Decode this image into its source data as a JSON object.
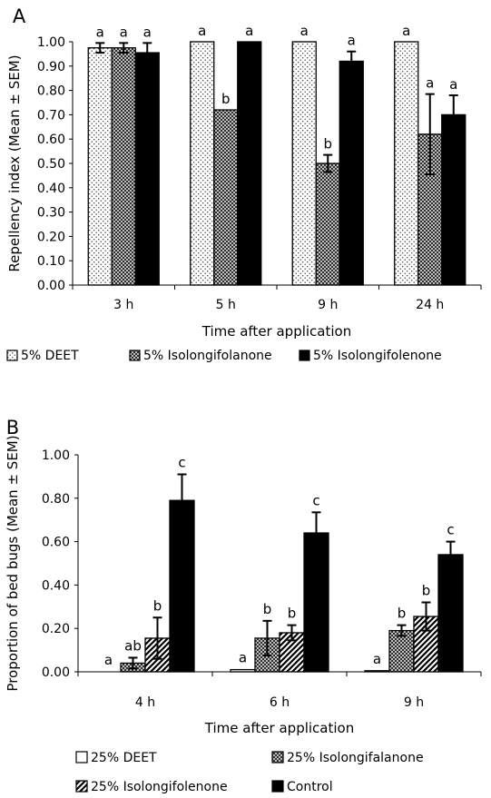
{
  "chart_data": [
    {
      "panel_label": "A",
      "type": "bar",
      "categories": [
        "3 h",
        "5 h",
        "9 h",
        "24 h"
      ],
      "xlabel": "Time after application",
      "ylabel": "Repellency index  (Mean ± SEM)",
      "ylim": [
        0,
        1
      ],
      "yticks": [
        "0.00",
        "0.10",
        "0.20",
        "0.30",
        "0.40",
        "0.50",
        "0.60",
        "0.70",
        "0.80",
        "0.90",
        "1.00"
      ],
      "legend_position": "bottom",
      "series": [
        {
          "name": "5% DEET",
          "pattern": "dots",
          "values": [
            0.975,
            1.0,
            1.0,
            1.0
          ],
          "sem": [
            0.02,
            0,
            0,
            0
          ],
          "letters": [
            "a",
            "a",
            "a",
            "a"
          ]
        },
        {
          "name": "5% Isolongifolanone",
          "pattern": "crosshatch",
          "values": [
            0.975,
            0.72,
            0.5,
            0.62
          ],
          "sem": [
            0.02,
            0,
            0.035,
            0.165
          ],
          "letters": [
            "a",
            "b",
            "b",
            "a"
          ]
        },
        {
          "name": "5% Isolongifolenone",
          "pattern": "solid",
          "values": [
            0.955,
            1.0,
            0.92,
            0.7
          ],
          "sem": [
            0.04,
            0,
            0.04,
            0.08
          ],
          "letters": [
            "a",
            "a",
            "a",
            "a"
          ]
        }
      ]
    },
    {
      "panel_label": "B",
      "type": "bar",
      "categories": [
        "4 h",
        "6 h",
        "9 h"
      ],
      "xlabel": "Time after application",
      "ylabel": "Proportion of bed bugs (Mean ± SEM)",
      "ylim": [
        0,
        1
      ],
      "yticks": [
        "0.00",
        "0.20",
        "0.40",
        "0.60",
        "0.80",
        "1.00"
      ],
      "legend_position": "bottom",
      "series": [
        {
          "name": "25% DEET",
          "pattern": "empty",
          "values": [
            0.0,
            0.01,
            0.005
          ],
          "sem": [
            0,
            0,
            0
          ],
          "letters": [
            "a",
            "a",
            "a"
          ]
        },
        {
          "name": "25% Isolongifalanone",
          "pattern": "crosshatch",
          "values": [
            0.04,
            0.155,
            0.19
          ],
          "sem": [
            0.025,
            0.08,
            0.025
          ],
          "letters": [
            "ab",
            "b",
            "b"
          ]
        },
        {
          "name": "25% Isolongifolenone",
          "pattern": "diagonal",
          "values": [
            0.155,
            0.18,
            0.255
          ],
          "sem": [
            0.095,
            0.035,
            0.065
          ],
          "letters": [
            "b",
            "b",
            "b"
          ]
        },
        {
          "name": "Control",
          "pattern": "solid",
          "values": [
            0.79,
            0.64,
            0.54
          ],
          "sem": [
            0.12,
            0.095,
            0.06
          ],
          "letters": [
            "c",
            "c",
            "c"
          ]
        }
      ]
    }
  ]
}
